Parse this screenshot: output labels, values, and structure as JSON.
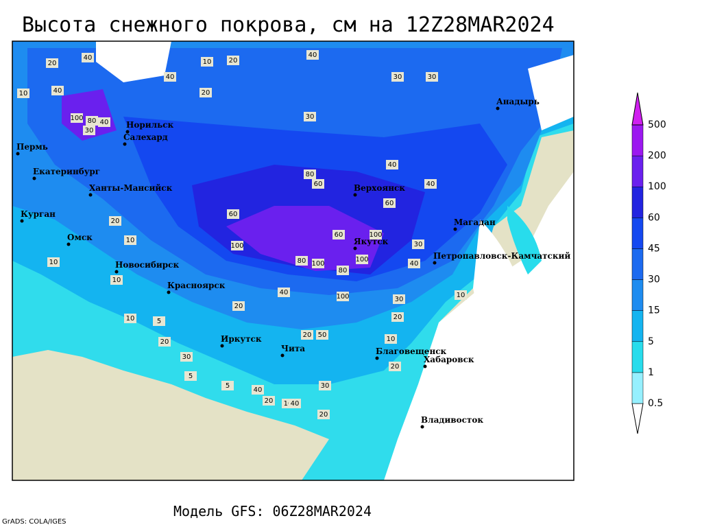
{
  "title": "Высота снежного покрова, см на 12Z28MAR2024",
  "footer": "Модель GFS: 06Z28MAR2024",
  "credit": "GrADS: COLA/IGES",
  "cities": [
    "Анадырь",
    "Норильск",
    "Салехард",
    "Пермь",
    "Екатеринбург",
    "Ханты-Мансийск",
    "Верхоянск",
    "Курган",
    "Омск",
    "Магадан",
    "Якутск",
    "Петропавловск-Камчатский",
    "Новосибирск",
    "Красноярск",
    "Иркутск",
    "Чита",
    "Благовещенск",
    "Хабаровск",
    "Владивосток"
  ],
  "contour_labels": [
    "40",
    "20",
    "10",
    "20",
    "40",
    "30",
    "30",
    "20",
    "10",
    "40",
    "100",
    "80",
    "40",
    "30",
    "40",
    "30",
    "80",
    "60",
    "40",
    "40",
    "60",
    "60",
    "100",
    "100",
    "60",
    "100",
    "80",
    "100",
    "100",
    "80",
    "30",
    "40",
    "40",
    "30",
    "20",
    "20",
    "10",
    "10",
    "10",
    "10",
    "20",
    "20",
    "30",
    "20",
    "10",
    "50",
    "40",
    "20",
    "30",
    "5",
    "5",
    "20",
    "10",
    "10",
    "5",
    "20",
    "40"
  ],
  "colorbar": {
    "levels": [
      0.5,
      1,
      5,
      15,
      30,
      45,
      60,
      100,
      200,
      500
    ]
  }
}
